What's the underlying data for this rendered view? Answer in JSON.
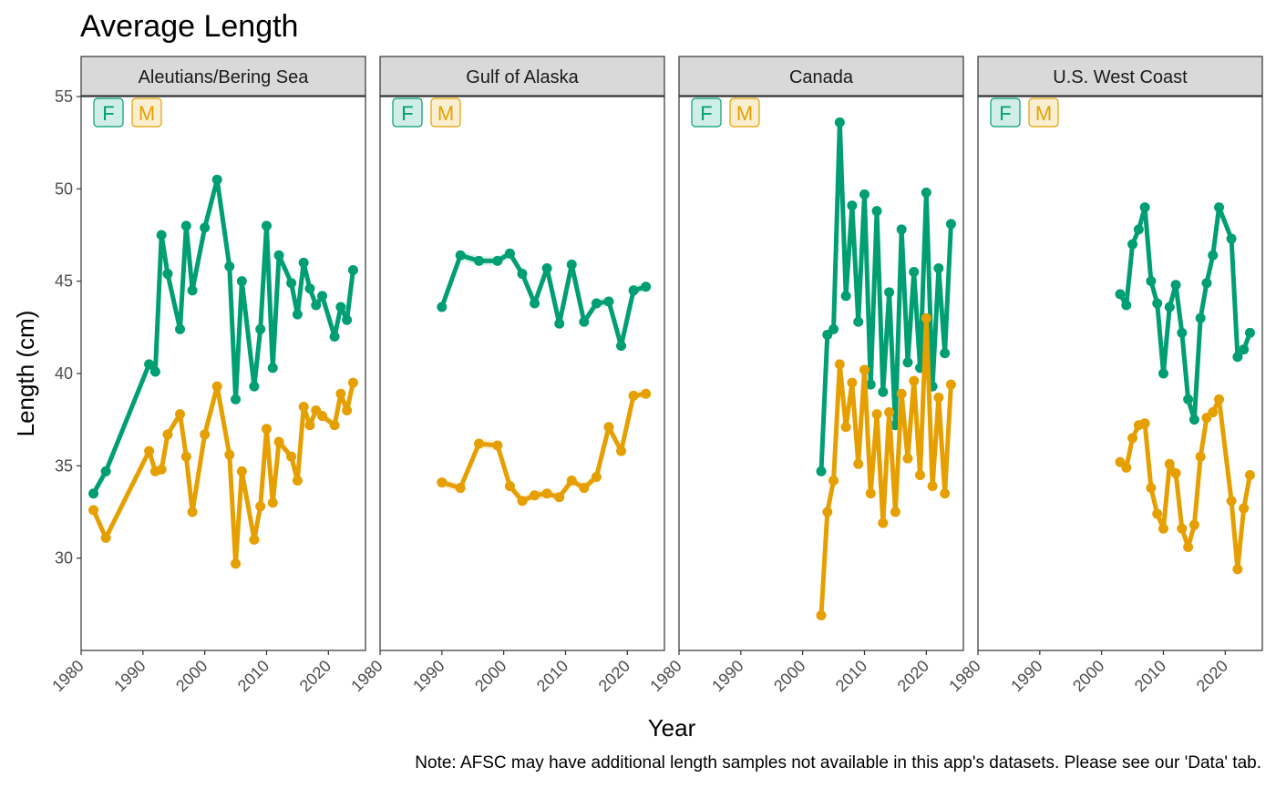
{
  "title": "Average Length",
  "caption": "Note: AFSC may have additional length samples not available in this app's datasets. Please see our 'Data' tab.",
  "colors": {
    "F": "#009E73",
    "M": "#E69F00",
    "strip_bg": "#D9D9D9",
    "panel_border": "#333333"
  },
  "chart_data": {
    "type": "line",
    "xlabel": "Year",
    "ylabel": "Length (cm)",
    "xlim": [
      1980,
      2026
    ],
    "ylim": [
      25,
      55
    ],
    "x_ticks": [
      1980,
      1990,
      2000,
      2010,
      2020
    ],
    "y_ticks": [
      30,
      35,
      40,
      45,
      50,
      55
    ],
    "legend": [
      "F",
      "M"
    ],
    "panels": [
      {
        "name": "Aleutians/Bering Sea",
        "series": [
          {
            "name": "F",
            "x": [
              1982,
              1984,
              1991,
              1992,
              1993,
              1994,
              1996,
              1997,
              1998,
              2000,
              2002,
              2004,
              2005,
              2006,
              2008,
              2009,
              2010,
              2011,
              2012,
              2014,
              2015,
              2016,
              2017,
              2018,
              2019,
              2021,
              2022,
              2023,
              2024
            ],
            "y": [
              33.5,
              34.7,
              40.5,
              40.1,
              47.5,
              45.4,
              42.4,
              48.0,
              44.5,
              47.9,
              50.5,
              45.8,
              38.6,
              45.0,
              39.3,
              42.4,
              48.0,
              40.3,
              46.4,
              44.9,
              43.2,
              46.0,
              44.6,
              43.7,
              44.2,
              42.0,
              43.6,
              42.9,
              45.6
            ]
          },
          {
            "name": "M",
            "x": [
              1982,
              1984,
              1991,
              1992,
              1993,
              1994,
              1996,
              1997,
              1998,
              2000,
              2002,
              2004,
              2005,
              2006,
              2008,
              2009,
              2010,
              2011,
              2012,
              2014,
              2015,
              2016,
              2017,
              2018,
              2019,
              2021,
              2022,
              2023,
              2024
            ],
            "y": [
              32.6,
              31.1,
              35.8,
              34.7,
              34.8,
              36.7,
              37.8,
              35.5,
              32.5,
              36.7,
              39.3,
              35.6,
              29.7,
              34.7,
              31.0,
              32.8,
              37.0,
              33.0,
              36.3,
              35.5,
              34.2,
              38.2,
              37.2,
              38.0,
              37.7,
              37.2,
              38.9,
              38.0,
              39.5
            ]
          }
        ]
      },
      {
        "name": "Gulf of Alaska",
        "series": [
          {
            "name": "F",
            "x": [
              1990,
              1993,
              1996,
              1999,
              2001,
              2003,
              2005,
              2007,
              2009,
              2011,
              2013,
              2015,
              2017,
              2019,
              2021,
              2023
            ],
            "y": [
              43.6,
              46.4,
              46.1,
              46.1,
              46.5,
              45.4,
              43.8,
              45.7,
              42.7,
              45.9,
              42.8,
              43.8,
              43.9,
              41.5,
              44.5,
              44.7
            ]
          },
          {
            "name": "M",
            "x": [
              1990,
              1993,
              1996,
              1999,
              2001,
              2003,
              2005,
              2007,
              2009,
              2011,
              2013,
              2015,
              2017,
              2019,
              2021,
              2023
            ],
            "y": [
              34.1,
              33.8,
              36.2,
              36.1,
              33.9,
              33.1,
              33.4,
              33.5,
              33.3,
              34.2,
              33.8,
              34.4,
              37.1,
              35.8,
              38.8,
              38.9
            ]
          }
        ]
      },
      {
        "name": "Canada",
        "series": [
          {
            "name": "F",
            "x": [
              2003,
              2004,
              2005,
              2006,
              2007,
              2008,
              2009,
              2010,
              2011,
              2012,
              2013,
              2014,
              2015,
              2016,
              2017,
              2018,
              2019,
              2020,
              2021,
              2022,
              2023,
              2024
            ],
            "y": [
              34.7,
              42.1,
              42.4,
              53.6,
              44.2,
              49.1,
              42.8,
              49.7,
              39.4,
              48.8,
              39.0,
              44.4,
              37.2,
              47.8,
              40.6,
              45.5,
              40.3,
              49.8,
              39.3,
              45.7,
              41.1,
              48.1
            ]
          },
          {
            "name": "M",
            "x": [
              2003,
              2004,
              2005,
              2006,
              2007,
              2008,
              2009,
              2010,
              2011,
              2012,
              2013,
              2014,
              2015,
              2016,
              2017,
              2018,
              2019,
              2020,
              2021,
              2022,
              2023,
              2024
            ],
            "y": [
              26.9,
              32.5,
              34.2,
              40.5,
              37.1,
              39.5,
              35.1,
              40.2,
              33.5,
              37.8,
              31.9,
              37.9,
              32.5,
              38.9,
              35.4,
              39.6,
              34.5,
              43.0,
              33.9,
              38.7,
              33.5,
              39.4
            ]
          }
        ]
      },
      {
        "name": "U.S. West Coast",
        "series": [
          {
            "name": "F",
            "x": [
              2003,
              2004,
              2005,
              2006,
              2007,
              2008,
              2009,
              2010,
              2011,
              2012,
              2013,
              2014,
              2015,
              2016,
              2017,
              2018,
              2019,
              2021,
              2022,
              2023,
              2024
            ],
            "y": [
              44.3,
              43.7,
              47.0,
              47.8,
              49.0,
              45.0,
              43.8,
              40.0,
              43.6,
              44.8,
              42.2,
              38.6,
              37.5,
              43.0,
              44.9,
              46.4,
              49.0,
              47.3,
              40.9,
              41.3,
              42.2
            ]
          },
          {
            "name": "M",
            "x": [
              2003,
              2004,
              2005,
              2006,
              2007,
              2008,
              2009,
              2010,
              2011,
              2012,
              2013,
              2014,
              2015,
              2016,
              2017,
              2018,
              2019,
              2021,
              2022,
              2023,
              2024
            ],
            "y": [
              35.2,
              34.9,
              36.5,
              37.2,
              37.3,
              33.8,
              32.4,
              31.6,
              35.1,
              34.6,
              31.6,
              30.6,
              31.8,
              35.5,
              37.6,
              37.9,
              38.6,
              33.1,
              29.4,
              32.7,
              34.5
            ]
          }
        ]
      }
    ]
  }
}
